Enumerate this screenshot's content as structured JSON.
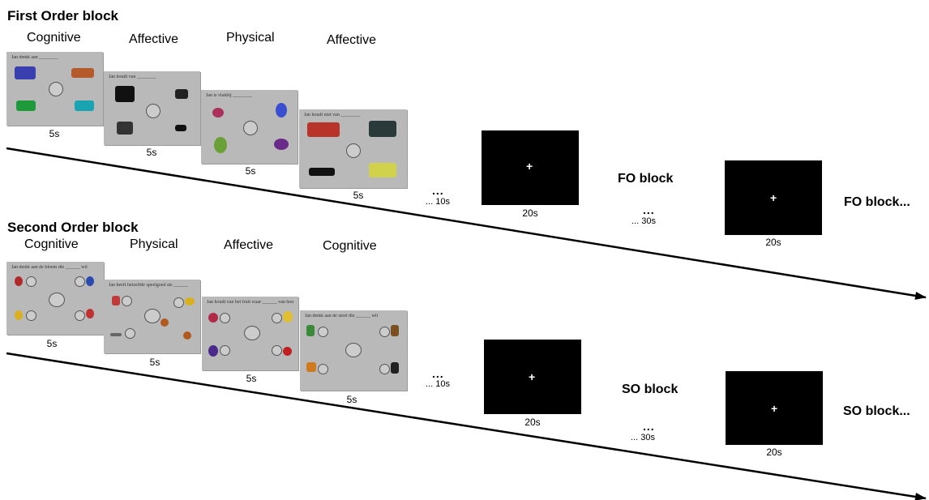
{
  "first_order": {
    "title": "First Order block",
    "labels": [
      "Cognitive",
      "Affective",
      "Physical",
      "Affective"
    ],
    "sentences": [
      "Jan denkt aan ________",
      "Jan houdt van ________",
      "Jan is vlakbij ________",
      "Jan houdt niet van ________"
    ],
    "durations": [
      "5s",
      "5s",
      "5s",
      "5s"
    ],
    "gap_dots": "...",
    "gap_label": "... 10s",
    "fix1_duration": "20s",
    "block_label_1": "FO block",
    "dots2": "...",
    "gap2_label": "... 30s",
    "fix2_duration": "20s",
    "block_label_2": "FO block...",
    "plus": "+"
  },
  "second_order": {
    "title": "Second Order block",
    "labels": [
      "Cognitive",
      "Physical",
      "Affective",
      "Cognitive"
    ],
    "sentences": [
      "Jan denkt aan de bloem die ______ wil",
      "Jan heeft hetzelfde speelgoed als ______",
      "Jan houdt van het fruit waar ______ van houdt",
      "Jan denkt aan de stoel die ______ wil"
    ],
    "durations": [
      "5s",
      "5s",
      "5s",
      "5s"
    ],
    "gap_dots": "...",
    "gap_label": "... 10s",
    "fix1_duration": "20s",
    "block_label_1": "SO block",
    "dots2": "...",
    "gap2_label": "... 30s",
    "fix2_duration": "20s",
    "block_label_2": "SO block...",
    "plus": "+"
  },
  "colors": {
    "panel_bg": "#b9b9b9",
    "fixation_bg": "#000000",
    "line": "#000000"
  }
}
